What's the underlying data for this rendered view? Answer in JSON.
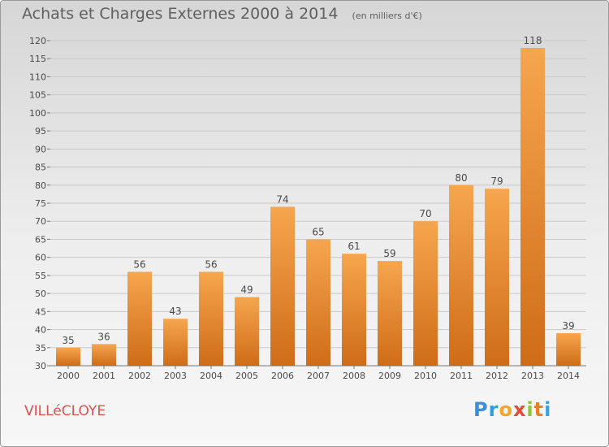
{
  "header": {
    "title": "Achats et Charges Externes 2000 à 2014",
    "subtitle": "(en milliers d'€)"
  },
  "footer": {
    "commune": "VILLéCLOYE",
    "logo_letters": [
      "P",
      "r",
      "o",
      "x",
      "i",
      "t",
      "i"
    ],
    "logo_colors": [
      "#3a8fd6",
      "#2f9ee0",
      "#f5a623",
      "#e8493c",
      "#8cc63f",
      "#ef7d22",
      "#3aa0e0"
    ]
  },
  "colors": {
    "bar_top": "#f6a64e",
    "bar_bottom": "#cf6c17",
    "grid": "#c9c9c9",
    "text": "#4a4a4a",
    "title": "#5f5f5f",
    "commune": "#e0504a"
  },
  "chart_data": {
    "type": "bar",
    "title": "Achats et Charges Externes 2000 à 2014",
    "subtitle": "(en milliers d'€)",
    "xlabel": "",
    "ylabel": "",
    "categories": [
      "2000",
      "2001",
      "2002",
      "2003",
      "2004",
      "2005",
      "2006",
      "2007",
      "2008",
      "2009",
      "2010",
      "2011",
      "2012",
      "2013",
      "2014"
    ],
    "values": [
      35,
      36,
      56,
      43,
      56,
      49,
      74,
      65,
      61,
      59,
      70,
      80,
      79,
      118,
      39
    ],
    "ylim": [
      30,
      120
    ],
    "yticks": [
      30,
      35,
      40,
      45,
      50,
      55,
      60,
      65,
      70,
      75,
      80,
      85,
      90,
      95,
      100,
      105,
      110,
      115,
      120
    ],
    "grid": true,
    "data_labels": true
  }
}
